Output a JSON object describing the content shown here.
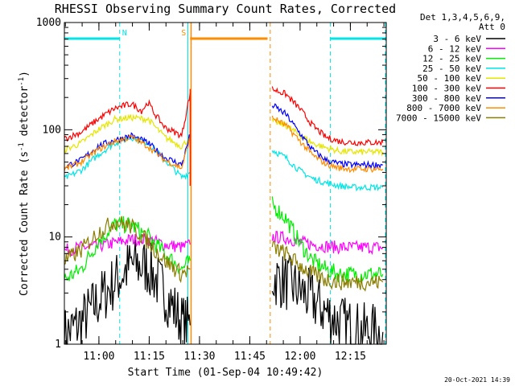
{
  "chart_data": {
    "type": "line",
    "title": "RHESSI Observing Summary Count Rates, Corrected",
    "xlabel": "Start Time (01-Sep-04 10:49:42)",
    "ylabel_main": "Corrected Count Rate (s",
    "ylabel_sup1": "-1",
    "ylabel_mid": " detector",
    "ylabel_sup2": "-1",
    "ylabel_end": ")",
    "y_scale": "log",
    "ylim": [
      1,
      1000
    ],
    "xlim_minutes": [
      0,
      96
    ],
    "x_tick_labels": [
      "11:00",
      "11:15",
      "11:30",
      "11:45",
      "12:00",
      "12:15"
    ],
    "x_tick_minutes": [
      10.3,
      25.3,
      40.3,
      55.3,
      70.3,
      85.3
    ],
    "y_tick_labels": [
      "1",
      "10",
      "100",
      "1000"
    ],
    "y_tick_values": [
      1,
      10,
      100,
      1000
    ],
    "legend_header": [
      "Det 1,3,4,5,6,9,",
      "Att 0"
    ],
    "timestamp": "20-Oct-2021 14:39",
    "flags": [
      {
        "label": "N",
        "color": "#00e5e5",
        "intervals": [
          [
            0,
            16.5
          ],
          [
            79.3,
            96
          ]
        ]
      },
      {
        "label": "S",
        "color": "#ff8c00",
        "intervals": [
          [
            37.5,
            60.6
          ]
        ]
      }
    ],
    "night_boundaries_minutes": [
      16.5,
      79.3
    ],
    "data_gap_minutes": [
      37.8,
      61.4
    ],
    "series": [
      {
        "name": "3 - 6 keV",
        "color": "#000000",
        "points": [
          [
            0,
            1.2
          ],
          [
            5,
            1.6
          ],
          [
            10,
            2.5
          ],
          [
            15,
            3.8
          ],
          [
            20,
            5.5
          ],
          [
            25,
            5.2
          ],
          [
            30,
            3.0
          ],
          [
            35,
            1.6
          ],
          [
            37.5,
            1.5
          ],
          [
            62,
            4.2
          ],
          [
            66,
            3.8
          ],
          [
            70,
            3.2
          ],
          [
            74,
            2.6
          ],
          [
            78,
            2.0
          ],
          [
            82,
            1.6
          ],
          [
            86,
            1.4
          ],
          [
            90,
            1.3
          ],
          [
            95,
            1.3
          ]
        ]
      },
      {
        "name": "6 - 12 keV",
        "color": "#ff00ff",
        "points": [
          [
            0,
            7.5
          ],
          [
            5,
            8
          ],
          [
            10,
            8.2
          ],
          [
            15,
            8.8
          ],
          [
            20,
            9.5
          ],
          [
            25,
            9.5
          ],
          [
            30,
            8.5
          ],
          [
            35,
            8
          ],
          [
            37.5,
            8.5
          ],
          [
            62,
            10
          ],
          [
            66,
            9.8
          ],
          [
            70,
            9
          ],
          [
            74,
            8.5
          ],
          [
            78,
            8.2
          ],
          [
            82,
            8
          ],
          [
            86,
            8
          ],
          [
            90,
            8
          ],
          [
            95,
            8
          ]
        ]
      },
      {
        "name": "12 - 25 keV",
        "color": "#00ee00",
        "points": [
          [
            0,
            4
          ],
          [
            5,
            5
          ],
          [
            10,
            9
          ],
          [
            15,
            13
          ],
          [
            20,
            13
          ],
          [
            25,
            10
          ],
          [
            30,
            7
          ],
          [
            35,
            5
          ],
          [
            37.5,
            6
          ],
          [
            62,
            20
          ],
          [
            66,
            15
          ],
          [
            70,
            9
          ],
          [
            74,
            6
          ],
          [
            78,
            5
          ],
          [
            82,
            4.5
          ],
          [
            86,
            4.5
          ],
          [
            90,
            4.5
          ],
          [
            95,
            4.5
          ]
        ]
      },
      {
        "name": "25 - 50 keV",
        "color": "#00e5e5",
        "points": [
          [
            0,
            35
          ],
          [
            5,
            42
          ],
          [
            10,
            58
          ],
          [
            15,
            75
          ],
          [
            20,
            85
          ],
          [
            25,
            75
          ],
          [
            30,
            52
          ],
          [
            35,
            36
          ],
          [
            37.5,
            40
          ],
          [
            62,
            65
          ],
          [
            66,
            55
          ],
          [
            70,
            42
          ],
          [
            74,
            35
          ],
          [
            78,
            32
          ],
          [
            82,
            30
          ],
          [
            86,
            29
          ],
          [
            90,
            29
          ],
          [
            95,
            29
          ]
        ]
      },
      {
        "name": "50 - 100 keV",
        "color": "#e6e600",
        "points": [
          [
            0,
            65
          ],
          [
            5,
            75
          ],
          [
            10,
            100
          ],
          [
            15,
            125
          ],
          [
            20,
            130
          ],
          [
            25,
            125
          ],
          [
            30,
            85
          ],
          [
            35,
            70
          ],
          [
            37.5,
            85
          ],
          [
            62,
            120
          ],
          [
            66,
            110
          ],
          [
            70,
            90
          ],
          [
            74,
            75
          ],
          [
            78,
            68
          ],
          [
            82,
            63
          ],
          [
            86,
            62
          ],
          [
            90,
            62
          ],
          [
            95,
            62
          ]
        ]
      },
      {
        "name": "100 - 300 keV",
        "color": "#ff0000",
        "points": [
          [
            0,
            82
          ],
          [
            5,
            95
          ],
          [
            10,
            125
          ],
          [
            15,
            158
          ],
          [
            20,
            175
          ],
          [
            23,
            150
          ],
          [
            25,
            180
          ],
          [
            27,
            140
          ],
          [
            30,
            105
          ],
          [
            35,
            88
          ],
          [
            37.5,
            220
          ],
          [
            62,
            240
          ],
          [
            66,
            215
          ],
          [
            70,
            160
          ],
          [
            74,
            110
          ],
          [
            78,
            85
          ],
          [
            82,
            78
          ],
          [
            86,
            76
          ],
          [
            90,
            76
          ],
          [
            95,
            76
          ]
        ]
      },
      {
        "name": "300 - 800 keV",
        "color": "#0000ff",
        "points": [
          [
            0,
            45
          ],
          [
            5,
            52
          ],
          [
            10,
            70
          ],
          [
            15,
            80
          ],
          [
            20,
            88
          ],
          [
            25,
            75
          ],
          [
            30,
            55
          ],
          [
            35,
            47
          ],
          [
            37.5,
            90
          ],
          [
            62,
            170
          ],
          [
            66,
            140
          ],
          [
            70,
            95
          ],
          [
            74,
            65
          ],
          [
            78,
            52
          ],
          [
            82,
            48
          ],
          [
            86,
            47
          ],
          [
            90,
            47
          ],
          [
            95,
            47
          ]
        ]
      },
      {
        "name": "800 - 7000 keV",
        "color": "#ff8c00",
        "points": [
          [
            0,
            43
          ],
          [
            5,
            50
          ],
          [
            10,
            65
          ],
          [
            15,
            78
          ],
          [
            20,
            85
          ],
          [
            25,
            70
          ],
          [
            30,
            52
          ],
          [
            35,
            44
          ],
          [
            37.5,
            85
          ],
          [
            62,
            130
          ],
          [
            66,
            110
          ],
          [
            70,
            80
          ],
          [
            74,
            58
          ],
          [
            78,
            48
          ],
          [
            82,
            44
          ],
          [
            86,
            43
          ],
          [
            90,
            43
          ],
          [
            95,
            43
          ]
        ]
      },
      {
        "name": "7000 - 15000 keV",
        "color": "#8b7d00",
        "points": [
          [
            0,
            6
          ],
          [
            5,
            7.5
          ],
          [
            10,
            11
          ],
          [
            15,
            14
          ],
          [
            20,
            12.5
          ],
          [
            25,
            9
          ],
          [
            30,
            6
          ],
          [
            35,
            4.5
          ],
          [
            37.5,
            5
          ],
          [
            62,
            8
          ],
          [
            66,
            7
          ],
          [
            70,
            5.5
          ],
          [
            74,
            4.5
          ],
          [
            78,
            4
          ],
          [
            82,
            3.8
          ],
          [
            86,
            3.8
          ],
          [
            90,
            3.8
          ],
          [
            95,
            3.8
          ]
        ]
      }
    ]
  }
}
